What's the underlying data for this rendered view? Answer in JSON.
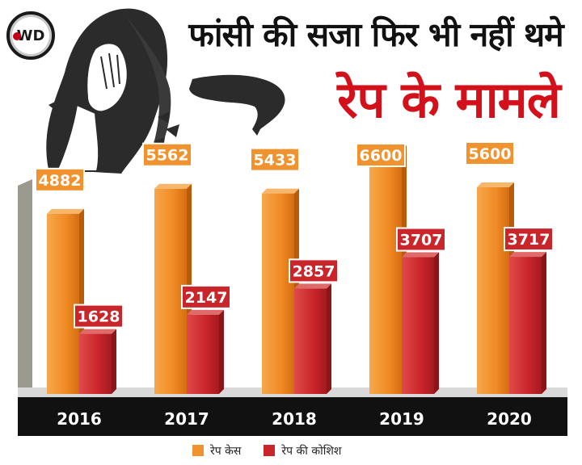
{
  "brand": {
    "logo_text": "WD"
  },
  "header": {
    "title_line1": "फांसी की सजा फिर भी नहीं थमे",
    "title_line2": "रेप के मामले"
  },
  "colors": {
    "rape_cases": "#f0932f",
    "attempted_rape": "#c9252b",
    "title_accent": "#d3111a",
    "axis_band": "#111111"
  },
  "chart_data": {
    "type": "bar",
    "categories": [
      "2016",
      "2017",
      "2018",
      "2019",
      "2020"
    ],
    "series": [
      {
        "name": "रेप केस",
        "values": [
          4882,
          5562,
          5433,
          6600,
          5600
        ]
      },
      {
        "name": "रेप की कोशिश",
        "values": [
          1628,
          2147,
          2857,
          3707,
          3717
        ]
      }
    ],
    "ylim": [
      0,
      7000
    ],
    "grid": false,
    "legend_position": "bottom",
    "title": "",
    "xlabel": "",
    "ylabel": ""
  }
}
